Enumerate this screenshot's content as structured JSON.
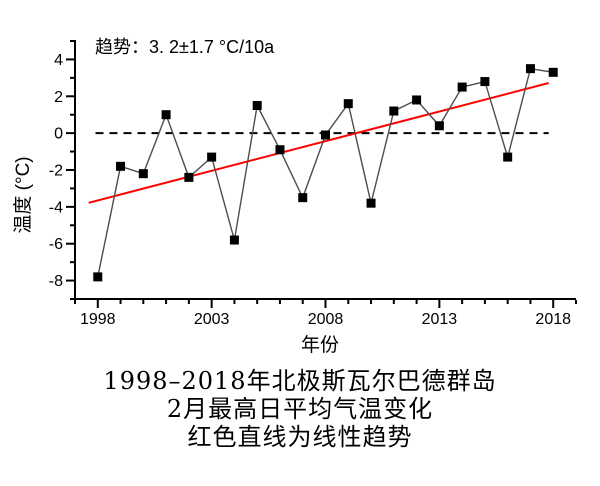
{
  "chart_data": {
    "type": "line",
    "x": [
      1998,
      1999,
      2000,
      2001,
      2002,
      2003,
      2004,
      2005,
      2006,
      2007,
      2008,
      2009,
      2010,
      2011,
      2012,
      2013,
      2014,
      2015,
      2016,
      2017,
      2018
    ],
    "values": [
      -7.8,
      -1.8,
      -2.2,
      1.0,
      -2.4,
      -1.3,
      -5.8,
      1.5,
      -0.9,
      -3.5,
      -0.1,
      1.6,
      -3.8,
      1.2,
      1.8,
      0.4,
      2.5,
      2.8,
      -1.3,
      3.5,
      3.3
    ],
    "series_name": "2月最高日平均气温",
    "annotation": "趋势：3. 2±1.7 °C/10a",
    "xlabel": "年份",
    "ylabel": "温度 (°C)",
    "xlim": [
      1997,
      2019
    ],
    "ylim": [
      -9,
      5
    ],
    "xticks_major": [
      1998,
      2003,
      2008,
      2013,
      2018
    ],
    "yticks_major": [
      4,
      2,
      0,
      -2,
      -4,
      -6,
      -8
    ],
    "minor_tick_step_x": 1,
    "minor_tick_step_y": 1,
    "grid": false,
    "legend": null,
    "zero_line": {
      "y": 0,
      "x_start": 1997.9,
      "x_end": 2017.8,
      "style": "dashed",
      "color": "#000000"
    },
    "trend_line": {
      "x_start": 1997.6,
      "y_start": -3.78,
      "x_end": 2017.8,
      "y_end": 2.72,
      "color": "#ff0000"
    },
    "series_line_color": "#4d4d4d",
    "marker": {
      "shape": "square",
      "size": 9,
      "color": "#000000"
    }
  },
  "caption": {
    "lines": [
      "1998–2018年北极斯瓦尔巴德群岛",
      "2月最高日平均气温变化",
      "红色直线为线性趋势"
    ]
  }
}
